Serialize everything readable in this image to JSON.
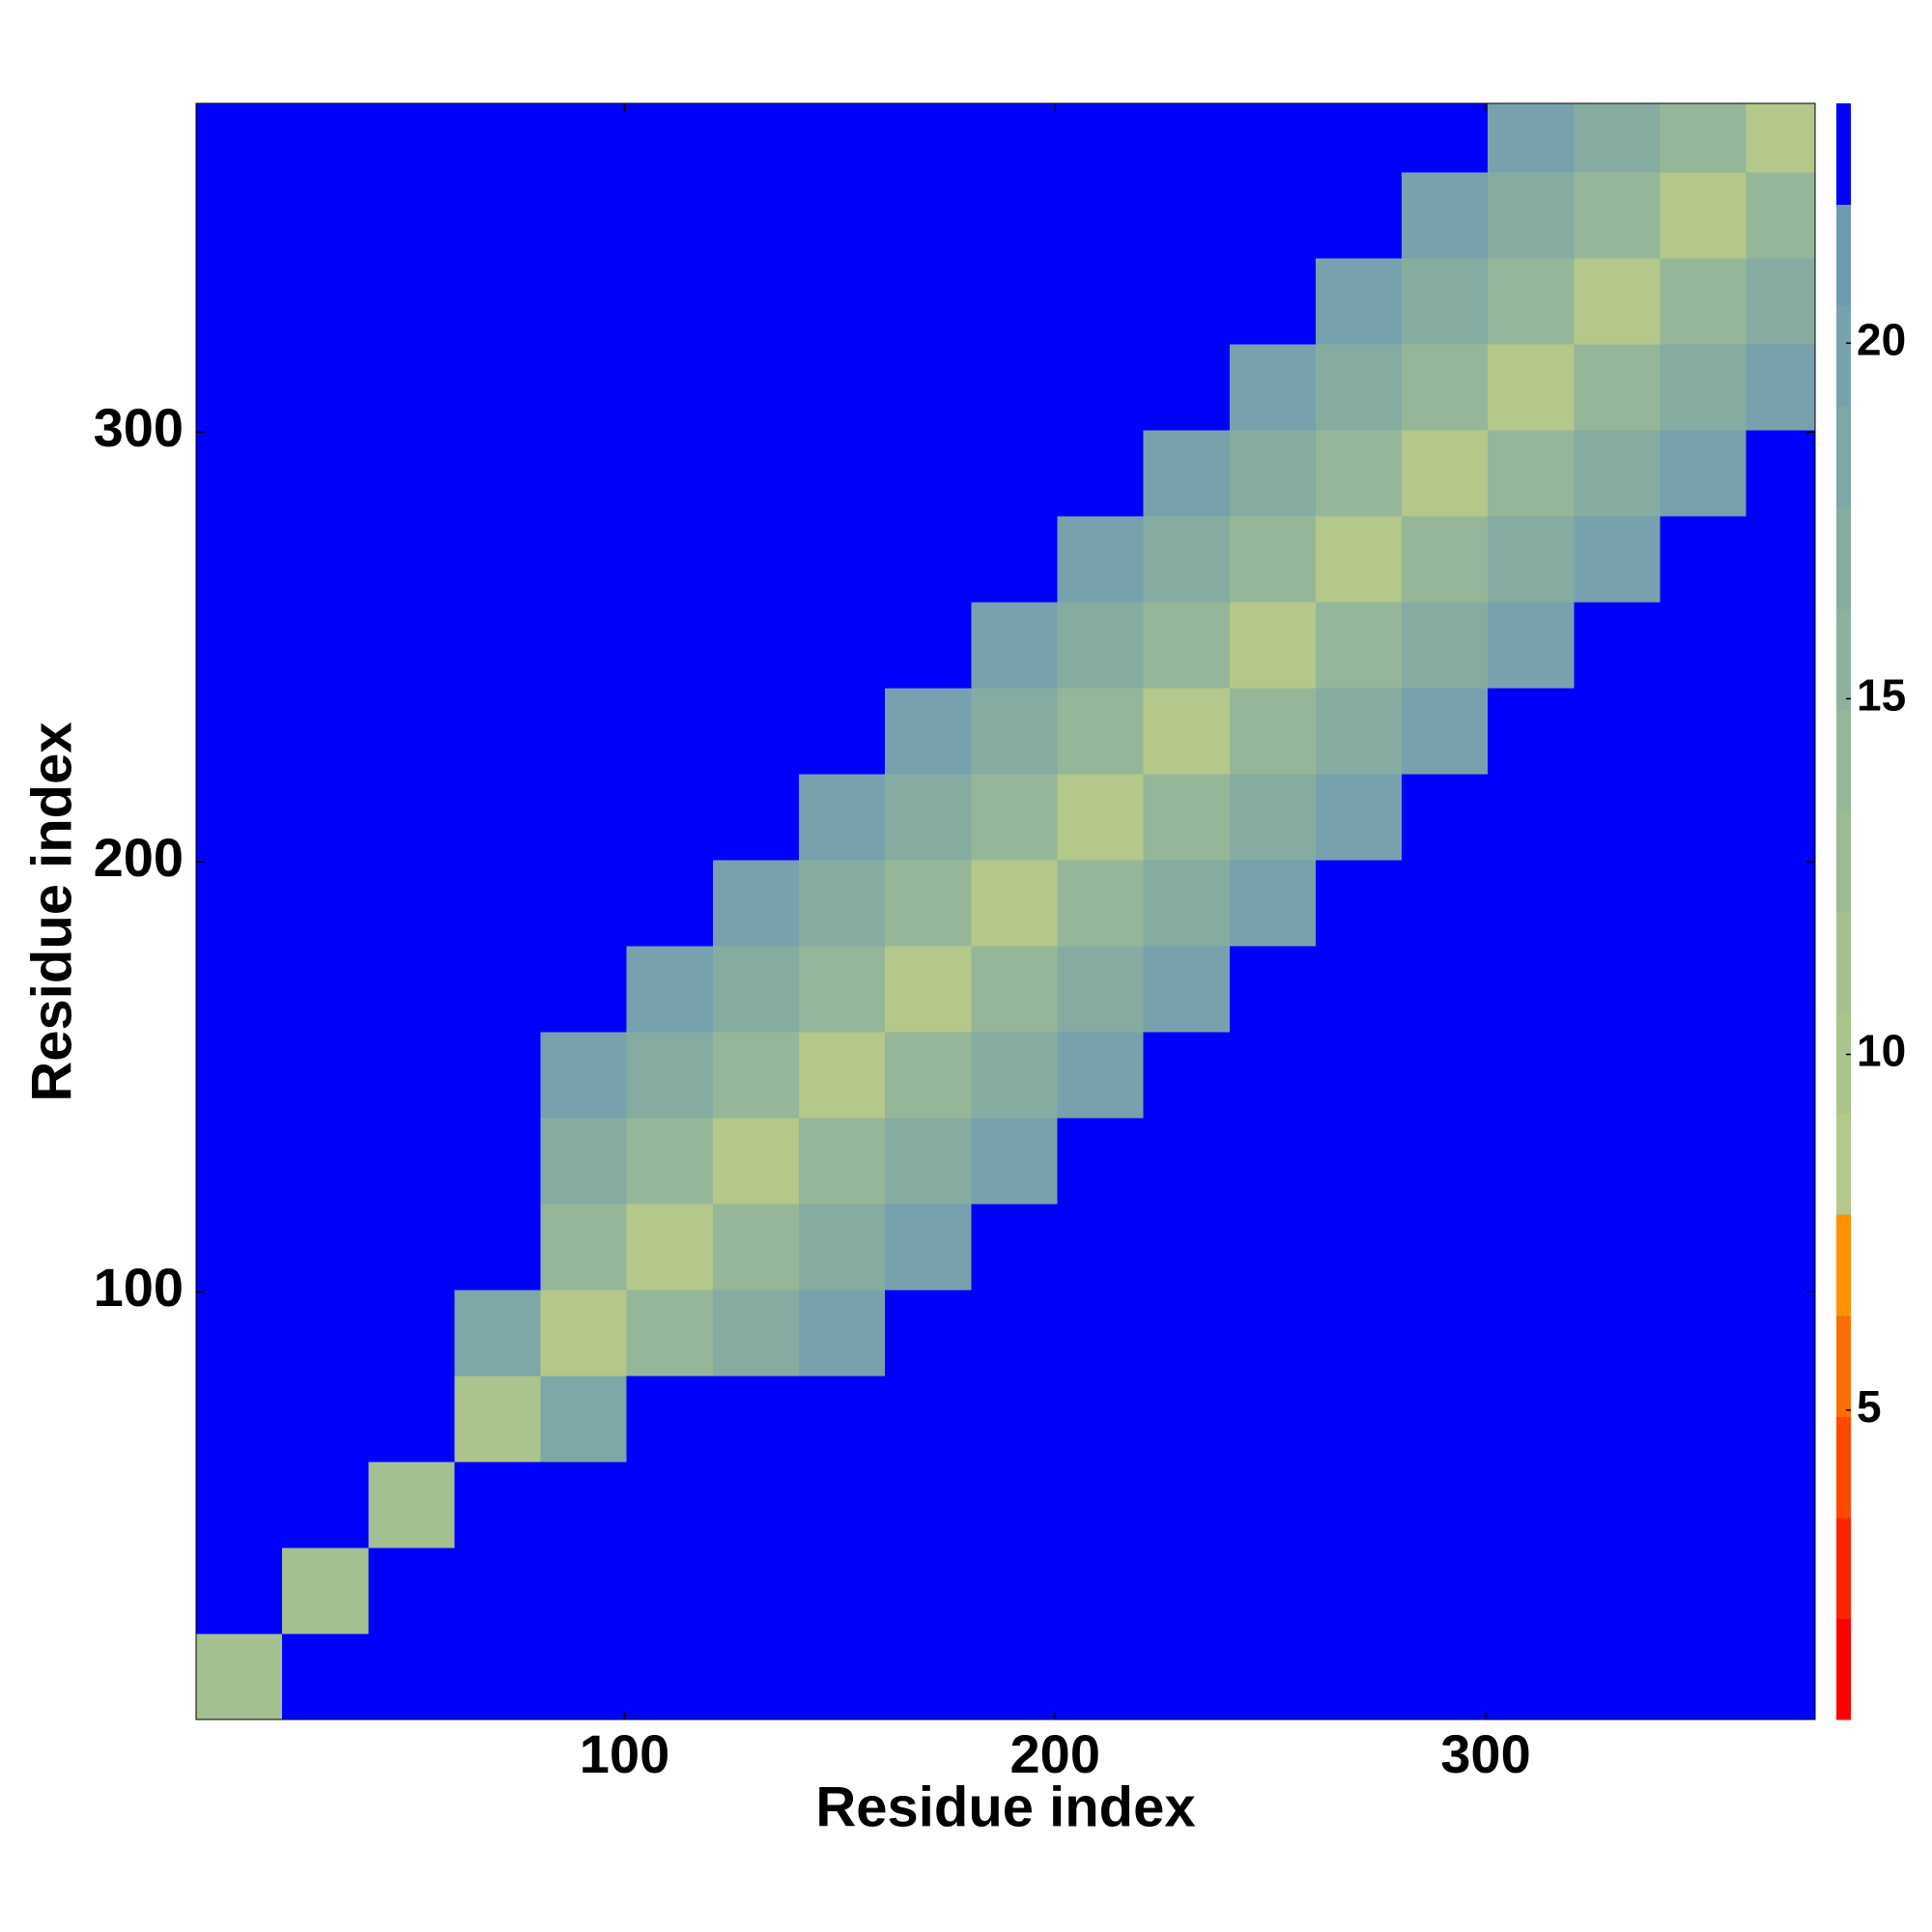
{
  "chart_data": {
    "type": "heatmap",
    "xlabel": "Residue index",
    "ylabel": "Residue index",
    "xlim": [
      0.5,
      376.5
    ],
    "ylim": [
      0.5,
      376.5
    ],
    "xticks": [
      100,
      200,
      300
    ],
    "yticks": [
      100,
      200,
      300
    ],
    "x_bins": [
      0.5,
      20.5,
      40.5,
      60.5,
      80.5,
      100.5,
      120.5,
      140.5,
      160.5,
      180.5,
      200.5,
      220.5,
      240.5,
      260.5,
      280.5,
      300.5,
      320.5,
      340.5,
      360.5,
      376.5
    ],
    "y_bins": [
      0.5,
      20.5,
      40.5,
      60.5,
      80.5,
      100.5,
      120.5,
      140.5,
      160.5,
      180.5,
      200.5,
      220.5,
      240.5,
      260.5,
      280.5,
      300.5,
      320.5,
      340.5,
      360.5,
      376.5
    ],
    "z": [
      [
        12,
        23,
        23,
        23,
        23,
        23,
        23,
        23,
        23,
        23,
        23,
        23,
        23,
        23,
        23,
        23,
        23,
        23,
        23
      ],
      [
        23,
        12,
        23,
        23,
        23,
        23,
        23,
        23,
        23,
        23,
        23,
        23,
        23,
        23,
        23,
        23,
        23,
        23,
        23
      ],
      [
        23,
        23,
        12,
        23,
        23,
        23,
        23,
        23,
        23,
        23,
        23,
        23,
        23,
        23,
        23,
        23,
        23,
        23,
        23
      ],
      [
        23,
        23,
        23,
        10,
        19,
        23,
        23,
        23,
        23,
        23,
        23,
        23,
        23,
        23,
        23,
        23,
        23,
        23,
        23
      ],
      [
        23,
        23,
        23,
        19,
        9,
        14,
        17,
        20,
        22,
        23,
        23,
        23,
        23,
        23,
        23,
        23,
        23,
        23,
        23
      ],
      [
        23,
        23,
        23,
        23,
        14,
        9,
        14,
        17,
        20,
        22,
        23,
        23,
        23,
        23,
        23,
        23,
        23,
        23,
        23
      ],
      [
        23,
        23,
        23,
        23,
        17,
        14,
        9,
        14,
        17,
        20,
        22,
        23,
        23,
        23,
        23,
        23,
        23,
        23,
        23
      ],
      [
        23,
        23,
        23,
        23,
        20,
        17,
        14,
        9,
        14,
        17,
        20,
        22,
        23,
        23,
        23,
        23,
        23,
        23,
        23
      ],
      [
        23,
        23,
        23,
        23,
        22,
        20,
        17,
        14,
        9,
        14,
        17,
        20,
        22,
        23,
        23,
        23,
        23,
        23,
        23
      ],
      [
        23,
        23,
        23,
        23,
        23,
        22,
        20,
        17,
        14,
        9,
        14,
        17,
        20,
        22,
        23,
        23,
        23,
        23,
        23
      ],
      [
        23,
        23,
        23,
        23,
        23,
        23,
        22,
        20,
        17,
        14,
        9,
        14,
        17,
        20,
        22,
        23,
        23,
        23,
        23
      ],
      [
        23,
        23,
        23,
        23,
        23,
        23,
        23,
        22,
        20,
        17,
        14,
        9,
        14,
        17,
        20,
        22,
        23,
        23,
        23
      ],
      [
        23,
        23,
        23,
        23,
        23,
        23,
        23,
        23,
        22,
        20,
        17,
        14,
        9,
        14,
        17,
        20,
        22,
        23,
        23
      ],
      [
        23,
        23,
        23,
        23,
        23,
        23,
        23,
        23,
        23,
        22,
        20,
        17,
        14,
        9,
        14,
        17,
        20,
        22,
        23
      ],
      [
        23,
        23,
        23,
        23,
        23,
        23,
        23,
        23,
        23,
        23,
        22,
        20,
        17,
        14,
        9,
        14,
        17,
        20,
        22
      ],
      [
        23,
        23,
        23,
        23,
        23,
        23,
        23,
        23,
        23,
        23,
        23,
        22,
        20,
        17,
        14,
        9,
        14,
        17,
        20
      ],
      [
        23,
        23,
        23,
        23,
        23,
        23,
        23,
        23,
        23,
        23,
        23,
        23,
        22,
        20,
        17,
        14,
        9,
        14,
        17
      ],
      [
        23,
        23,
        23,
        23,
        23,
        23,
        23,
        23,
        23,
        23,
        23,
        23,
        23,
        22,
        20,
        17,
        14,
        9,
        14
      ],
      [
        23,
        23,
        23,
        23,
        23,
        23,
        23,
        23,
        23,
        23,
        23,
        23,
        23,
        23,
        22,
        20,
        17,
        14,
        9
      ]
    ],
    "colorbar": {
      "levels": [
        0.65,
        2.07,
        3.49,
        4.91,
        6.33,
        7.75,
        9.17,
        10.59,
        12.01,
        13.43,
        14.85,
        16.27,
        17.69,
        19.11,
        20.53,
        21.95,
        23.37
      ],
      "colors": [
        "#ff0000",
        "#ff2400",
        "#ff4800",
        "#ff6c00",
        "#ff9000",
        "#b3c88a",
        "#abc38c",
        "#a4bf90",
        "#9cba94",
        "#95b698",
        "#8db19d",
        "#86aca2",
        "#7ea7a8",
        "#77a2ad",
        "#6e9bb3",
        "#0000ff"
      ],
      "ticks": [
        5,
        10,
        15,
        20
      ]
    }
  }
}
